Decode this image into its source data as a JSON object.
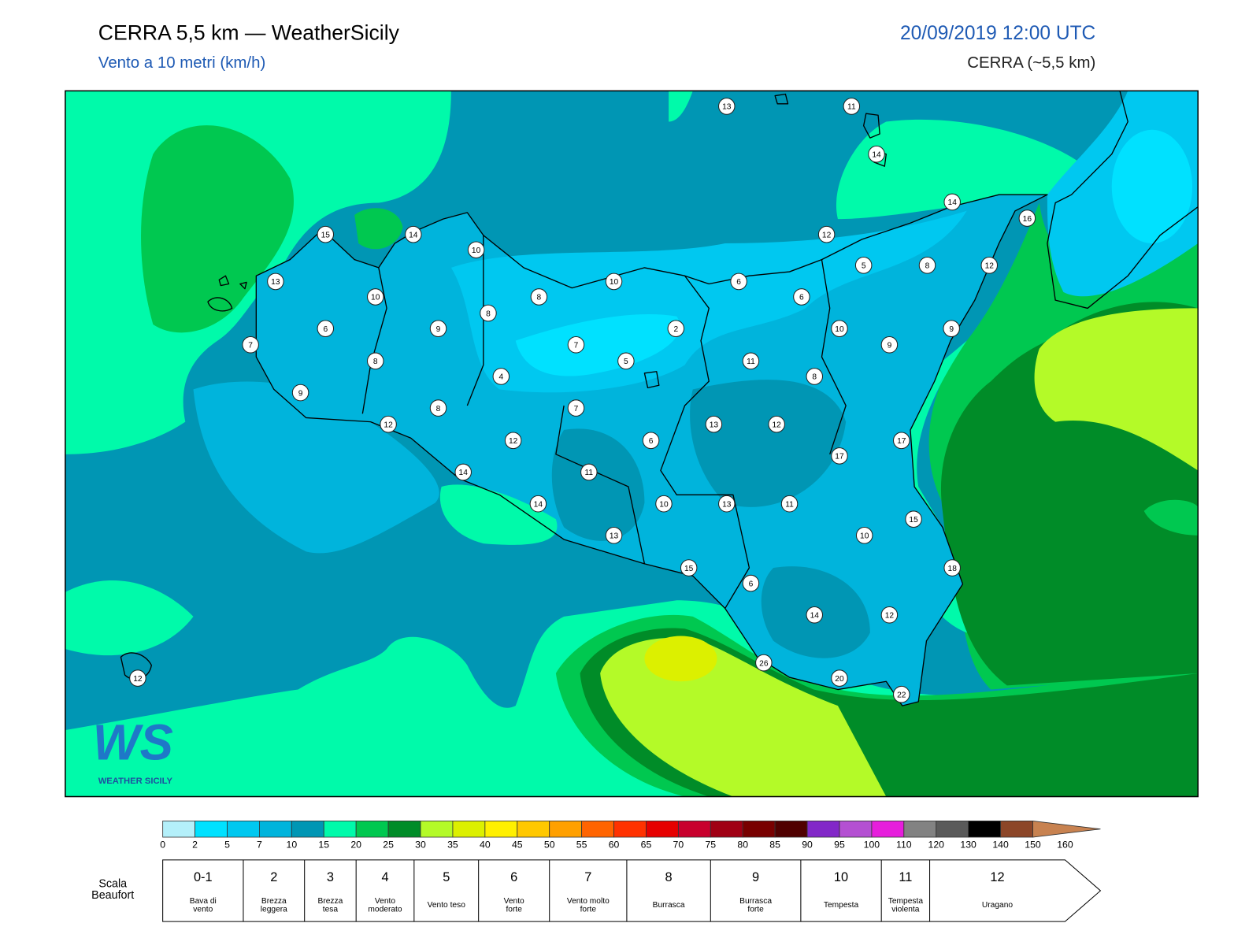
{
  "header": {
    "title": "CERRA 5,5 km — WeatherSicily",
    "subtitle": "Vento a 10 metri (km/h)",
    "date": "20/09/2019 12:00 UTC",
    "model": "CERRA (~5,5 km)"
  },
  "stations": [
    13,
    11,
    14,
    14,
    16,
    15,
    14,
    10,
    12,
    13,
    10,
    8,
    10,
    6,
    5,
    8,
    12,
    8,
    6,
    6,
    9,
    2,
    10,
    9,
    9,
    7,
    7,
    8,
    5,
    11,
    4,
    8,
    9,
    8,
    7,
    12,
    13,
    12,
    12,
    6,
    17,
    17,
    14,
    11,
    14,
    10,
    13,
    11,
    15,
    10,
    13,
    15,
    18,
    6,
    14,
    12,
    26,
    20,
    22,
    12
  ],
  "logo": {
    "mark": "WS",
    "name": "WEATHER SICILY"
  },
  "colorbar": {
    "ticks": [
      0,
      2,
      5,
      7,
      10,
      15,
      20,
      25,
      30,
      35,
      40,
      45,
      50,
      55,
      60,
      65,
      70,
      75,
      80,
      85,
      90,
      95,
      100,
      110,
      120,
      130,
      140,
      150,
      160
    ],
    "colors": [
      "#b4f0fa",
      "#00e1ff",
      "#00c8f0",
      "#00b4dc",
      "#0096b4",
      "#00faaa",
      "#00c850",
      "#008c28",
      "#b4fa28",
      "#dcf000",
      "#fff000",
      "#ffc800",
      "#ffa000",
      "#ff6400",
      "#ff3200",
      "#e60000",
      "#c8002d",
      "#a00014",
      "#780000",
      "#500000",
      "#8228c8",
      "#b450d2",
      "#e61edc",
      "#828282",
      "#5a5a5a",
      "#000000",
      "#8c4628",
      "#c88250"
    ]
  },
  "beaufort": {
    "title": [
      "Scala",
      "Beaufort"
    ],
    "levels": [
      {
        "force": "0-1",
        "label": [
          "Bava di",
          "vento"
        ]
      },
      {
        "force": "2",
        "label": [
          "Brezza",
          "leggera"
        ]
      },
      {
        "force": "3",
        "label": [
          "Brezza",
          "tesa"
        ]
      },
      {
        "force": "4",
        "label": [
          "Vento",
          "moderato"
        ]
      },
      {
        "force": "5",
        "label": [
          "Vento teso"
        ]
      },
      {
        "force": "6",
        "label": [
          "Vento",
          "forte"
        ]
      },
      {
        "force": "7",
        "label": [
          "Vento molto",
          "forte"
        ]
      },
      {
        "force": "8",
        "label": [
          "Burrasca"
        ]
      },
      {
        "force": "9",
        "label": [
          "Burrasca",
          "forte"
        ]
      },
      {
        "force": "10",
        "label": [
          "Tempesta"
        ]
      },
      {
        "force": "11",
        "label": [
          "Tempesta",
          "violenta"
        ]
      },
      {
        "force": "12",
        "label": [
          "Uragano"
        ]
      }
    ]
  }
}
